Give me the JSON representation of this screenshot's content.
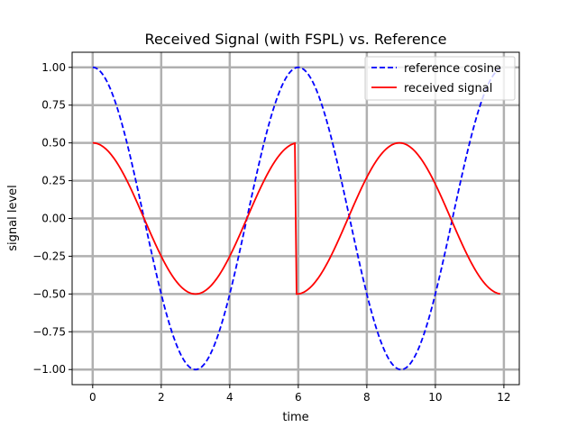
{
  "chart_data": {
    "type": "line",
    "title": "Received Signal (with FSPL) vs. Reference",
    "xlabel": "time",
    "ylabel": "signal level",
    "xlim": [
      -0.6,
      12.45
    ],
    "ylim": [
      -1.1,
      1.1
    ],
    "grid": true,
    "legend_position": "top-right",
    "x_ticks": [
      0,
      2,
      4,
      6,
      8,
      10,
      12
    ],
    "x_tick_labels": [
      "0",
      "2",
      "4",
      "6",
      "8",
      "10",
      "12"
    ],
    "y_ticks": [
      1.0,
      0.75,
      0.5,
      0.25,
      0.0,
      -0.25,
      -0.5,
      -0.75,
      -1.0
    ],
    "y_tick_labels": [
      "1.00",
      "0.75",
      "0.50",
      "0.25",
      "0.00",
      "−0.25",
      "−0.50",
      "−0.75",
      "−1.00"
    ],
    "series": [
      {
        "name": "reference cosine",
        "color": "#0000ff",
        "style": "dashed",
        "x": [
          0,
          0.3,
          0.6,
          0.9,
          1.2,
          1.5,
          1.8,
          2.1,
          2.4,
          2.7,
          3.0,
          3.3,
          3.6,
          3.9,
          4.2,
          4.5,
          4.8,
          5.1,
          5.4,
          5.7,
          6.0,
          6.3,
          6.6,
          6.9,
          7.2,
          7.5,
          7.8,
          8.1,
          8.4,
          8.7,
          9.0,
          9.3,
          9.6,
          9.9,
          10.2,
          10.5,
          10.8,
          11.1,
          11.4,
          11.7,
          11.9
        ],
        "values": [
          1.0,
          0.951,
          0.809,
          0.588,
          0.309,
          0.0,
          -0.309,
          -0.588,
          -0.809,
          -0.951,
          -1.0,
          -0.951,
          -0.809,
          -0.588,
          -0.309,
          0.0,
          0.309,
          0.588,
          0.809,
          0.951,
          1.0,
          0.951,
          0.809,
          0.588,
          0.309,
          0.0,
          -0.309,
          -0.588,
          -0.809,
          -0.951,
          -1.0,
          -0.951,
          -0.809,
          -0.588,
          -0.309,
          0.0,
          0.309,
          0.588,
          0.809,
          0.951,
          0.995
        ]
      },
      {
        "name": "received signal",
        "color": "#ff0000",
        "style": "solid",
        "x": [
          0,
          0.3,
          0.6,
          0.9,
          1.2,
          1.5,
          1.8,
          2.1,
          2.4,
          2.7,
          3.0,
          3.3,
          3.6,
          3.9,
          4.2,
          4.5,
          4.8,
          5.1,
          5.4,
          5.7,
          5.9,
          5.95,
          6.2,
          6.5,
          6.8,
          7.1,
          7.4,
          7.7,
          8.0,
          8.3,
          8.6,
          8.9,
          9.2,
          9.5,
          9.8,
          10.1,
          10.4,
          10.7,
          11.0,
          11.3,
          11.6,
          11.9
        ],
        "values": [
          0.5,
          0.476,
          0.405,
          0.294,
          0.155,
          0.0,
          -0.155,
          -0.294,
          -0.405,
          -0.476,
          -0.5,
          -0.476,
          -0.405,
          -0.294,
          -0.155,
          0.0,
          0.155,
          0.294,
          0.405,
          0.476,
          0.499,
          -0.5,
          -0.49,
          -0.433,
          -0.339,
          -0.214,
          -0.074,
          0.074,
          0.214,
          0.339,
          0.433,
          0.49,
          0.49,
          0.433,
          0.339,
          0.214,
          0.074,
          -0.074,
          -0.214,
          -0.339,
          -0.433,
          -0.49
        ]
      }
    ]
  }
}
